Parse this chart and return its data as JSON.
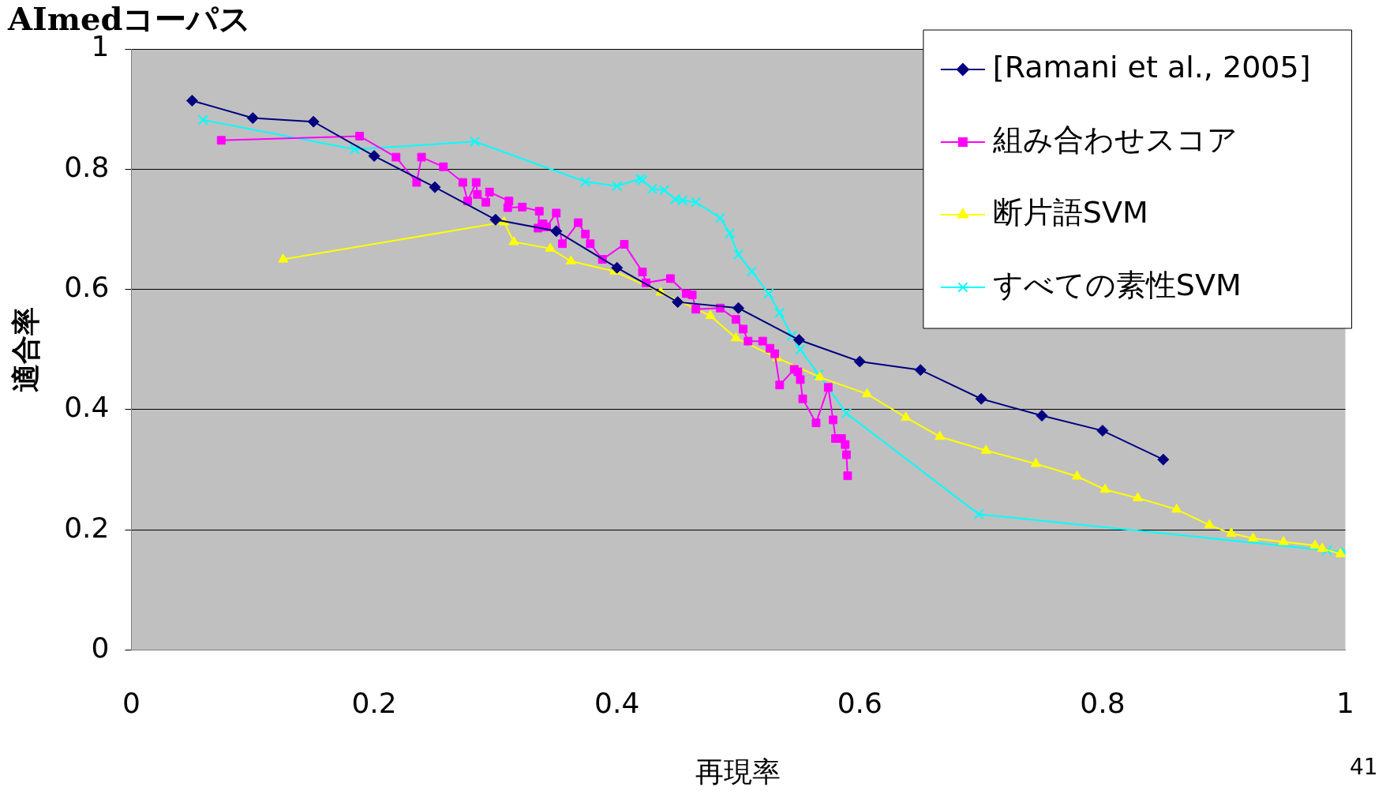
{
  "chart_data": {
    "type": "line",
    "title": "AImedコーパス",
    "xlabel": "再現率",
    "ylabel": "適合率",
    "xlim": [
      0,
      1
    ],
    "ylim": [
      0,
      1
    ],
    "xticks": [
      0,
      0.2,
      0.4,
      0.6,
      0.8,
      1
    ],
    "yticks": [
      0,
      0.2,
      0.4,
      0.6,
      0.8,
      1
    ],
    "grid": "y",
    "legend": "top right",
    "annotations": [
      "41"
    ],
    "series": [
      {
        "name": "[Ramani et al., 2005]",
        "color": "#000080",
        "marker": "diamond",
        "x": [
          0.05,
          0.1,
          0.15,
          0.2,
          0.25,
          0.3,
          0.35,
          0.4,
          0.45,
          0.5,
          0.55,
          0.6,
          0.65,
          0.7,
          0.75,
          0.8,
          0.85
        ],
        "values": [
          0.914,
          0.885,
          0.879,
          0.822,
          0.77,
          0.716,
          0.697,
          0.636,
          0.579,
          0.569,
          0.516,
          0.48,
          0.466,
          0.418,
          0.39,
          0.365,
          0.317
        ]
      },
      {
        "name": "組み合わせスコア",
        "color": "#ff00ff",
        "marker": "square",
        "x": [
          0.074,
          0.188,
          0.218,
          0.235,
          0.239,
          0.257,
          0.273,
          0.277,
          0.284,
          0.285,
          0.292,
          0.295,
          0.311,
          0.31,
          0.322,
          0.336,
          0.335,
          0.339,
          0.342,
          0.35,
          0.355,
          0.368,
          0.374,
          0.378,
          0.388,
          0.406,
          0.421,
          0.424,
          0.444,
          0.457,
          0.462,
          0.465,
          0.485,
          0.498,
          0.504,
          0.508,
          0.52,
          0.526,
          0.53,
          0.534,
          0.546,
          0.549,
          0.551,
          0.553,
          0.564,
          0.574,
          0.578,
          0.58,
          0.585,
          0.588,
          0.589,
          0.59
        ],
        "values": [
          0.848,
          0.855,
          0.82,
          0.778,
          0.82,
          0.804,
          0.778,
          0.747,
          0.778,
          0.758,
          0.745,
          0.762,
          0.747,
          0.736,
          0.737,
          0.73,
          0.702,
          0.709,
          0.704,
          0.727,
          0.676,
          0.711,
          0.692,
          0.676,
          0.65,
          0.675,
          0.629,
          0.611,
          0.618,
          0.593,
          0.591,
          0.567,
          0.569,
          0.55,
          0.534,
          0.514,
          0.514,
          0.502,
          0.493,
          0.441,
          0.467,
          0.463,
          0.45,
          0.418,
          0.378,
          0.437,
          0.383,
          0.352,
          0.352,
          0.342,
          0.325,
          0.29
        ]
      },
      {
        "name": "断片語SVM",
        "color": "#ffff00",
        "marker": "triangle",
        "x": [
          0.125,
          0.307,
          0.315,
          0.345,
          0.362,
          0.398,
          0.436,
          0.477,
          0.498,
          0.532,
          0.567,
          0.606,
          0.638,
          0.666,
          0.704,
          0.745,
          0.779,
          0.802,
          0.829,
          0.861,
          0.888,
          0.906,
          0.924,
          0.949,
          0.975,
          0.981,
          0.996
        ],
        "values": [
          0.65,
          0.712,
          0.679,
          0.668,
          0.647,
          0.63,
          0.595,
          0.556,
          0.519,
          0.486,
          0.454,
          0.426,
          0.387,
          0.355,
          0.332,
          0.31,
          0.289,
          0.267,
          0.253,
          0.234,
          0.208,
          0.194,
          0.186,
          0.18,
          0.174,
          0.169,
          0.16
        ]
      },
      {
        "name": "すべての素性SVM",
        "color": "#00ffff",
        "marker": "cross",
        "x": [
          0.059,
          0.184,
          0.283,
          0.374,
          0.4,
          0.419,
          0.421,
          0.429,
          0.439,
          0.448,
          0.454,
          0.465,
          0.485,
          0.493,
          0.5,
          0.511,
          0.525,
          0.534,
          0.544,
          0.551,
          0.566,
          0.589,
          0.698,
          0.985,
          1
        ],
        "values": [
          0.882,
          0.833,
          0.846,
          0.779,
          0.772,
          0.784,
          0.782,
          0.767,
          0.765,
          0.75,
          0.748,
          0.745,
          0.719,
          0.693,
          0.658,
          0.63,
          0.593,
          0.561,
          0.523,
          0.5,
          0.459,
          0.394,
          0.226,
          0.166,
          0.163
        ]
      }
    ]
  }
}
